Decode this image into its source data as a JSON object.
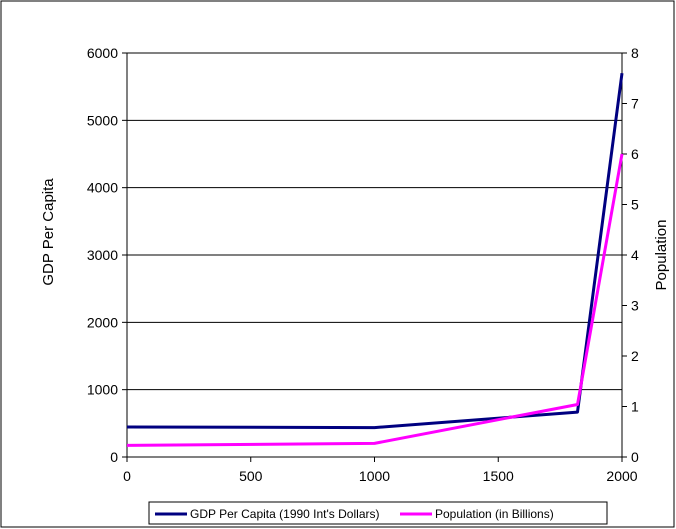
{
  "chart_data": {
    "type": "line",
    "title": "",
    "xlabel": "",
    "ylabel": "GDP Per Capita",
    "y2label": "Population",
    "xlim": [
      0,
      2000
    ],
    "ylim": [
      0,
      6000
    ],
    "y2lim": [
      0,
      8
    ],
    "x_ticks": [
      "0",
      "500",
      "1000",
      "1500",
      "2000"
    ],
    "y_ticks": [
      "0",
      "1000",
      "2000",
      "3000",
      "4000",
      "5000",
      "6000"
    ],
    "y2_ticks": [
      "0",
      "1",
      "2",
      "3",
      "4",
      "5",
      "6",
      "7",
      "8"
    ],
    "grid": "horizontal",
    "legend_position": "bottom",
    "series": [
      {
        "name": "GDP Per Capita (1990 Int's Dollars)",
        "axis": "left",
        "color": "#000080",
        "x": [
          0,
          1000,
          1820,
          2000
        ],
        "values": [
          445,
          436,
          667,
          5700
        ]
      },
      {
        "name": "Population (in Billions)",
        "axis": "right",
        "color": "#ff00ff",
        "x": [
          0,
          1000,
          1820,
          2000
        ],
        "values": [
          0.23,
          0.27,
          1.04,
          6.0
        ]
      }
    ]
  }
}
